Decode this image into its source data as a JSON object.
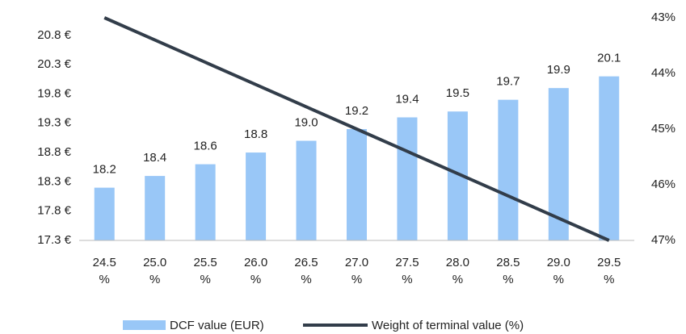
{
  "chart_data": {
    "type": "bar",
    "categories": [
      "24.5 %",
      "25.0 %",
      "25.5 %",
      "26.0 %",
      "26.5 %",
      "27.0 %",
      "27.5 %",
      "28.0 %",
      "28.5 %",
      "29.0 %",
      "29.5 %"
    ],
    "series": [
      {
        "name": "DCF value (EUR)",
        "type": "bar",
        "color": "#99c7f7",
        "values": [
          18.2,
          18.4,
          18.6,
          18.8,
          19.0,
          19.2,
          19.4,
          19.5,
          19.7,
          19.9,
          20.1
        ],
        "value_labels": [
          "18.2",
          "18.4",
          "18.6",
          "18.8",
          "19.0",
          "19.2",
          "19.4",
          "19.5",
          "19.7",
          "19.9",
          "20.1"
        ]
      },
      {
        "name": "Weight of terminal value (%)",
        "type": "line",
        "color": "#323d4a",
        "axis": "y2",
        "values": [
          43.0,
          43.4,
          43.8,
          44.2,
          44.6,
          45.0,
          45.4,
          45.8,
          46.2,
          46.6,
          47.0
        ]
      }
    ],
    "ylim": [
      17.3,
      21.1
    ],
    "yticks": [
      {
        "value": 17.3,
        "label": "17.3 €"
      },
      {
        "value": 17.8,
        "label": "17.8 €"
      },
      {
        "value": 18.3,
        "label": "18.3 €"
      },
      {
        "value": 18.8,
        "label": "18.8 €"
      },
      {
        "value": 19.3,
        "label": "19.3 €"
      },
      {
        "value": 19.8,
        "label": "19.8 €"
      },
      {
        "value": 20.3,
        "label": "20.3 €"
      },
      {
        "value": 20.8,
        "label": "20.8 €"
      }
    ],
    "y2lim": [
      43,
      47
    ],
    "y2_inverted": true,
    "y2ticks": [
      {
        "value": 43,
        "label": "43%"
      },
      {
        "value": 44,
        "label": "44%"
      },
      {
        "value": 45,
        "label": "45%"
      },
      {
        "value": 46,
        "label": "46%"
      },
      {
        "value": 47,
        "label": "47%"
      }
    ],
    "grid": false,
    "legend": "bottom"
  }
}
